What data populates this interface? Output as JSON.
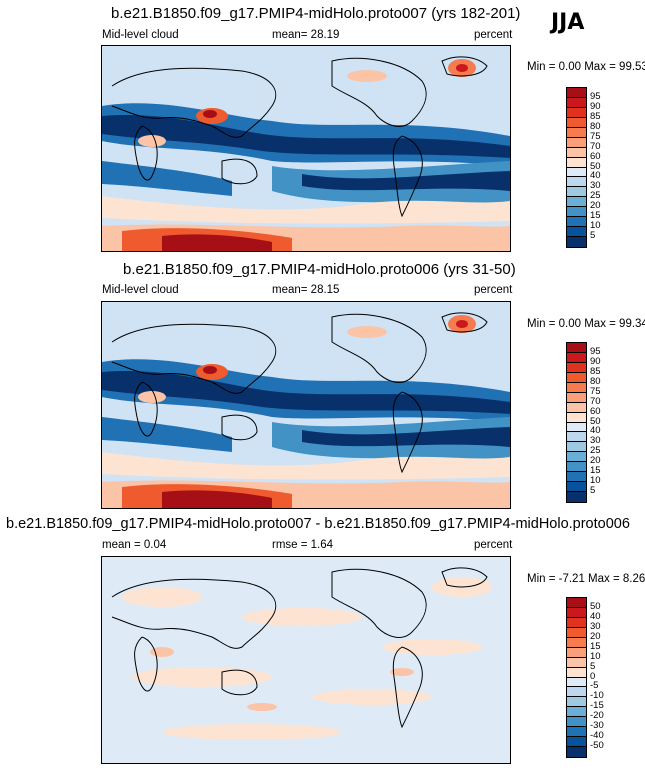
{
  "season": "JJA",
  "panels": [
    {
      "title": "b.e21.B1850.f09_g17.PMIP4-midHolo.proto007 (yrs 182-201)",
      "left": "Mid-level cloud",
      "mid": "mean=  28.19",
      "right": "percent",
      "minmax": "Min =   0.00 Max =  99.53",
      "levels": [
        "95",
        "90",
        "85",
        "80",
        "75",
        "70",
        "60",
        "50",
        "40",
        "30",
        "25",
        "20",
        "15",
        "10",
        "5"
      ],
      "colors": [
        "#a50f15",
        "#cb181d",
        "#e0321e",
        "#ef5a2f",
        "#f67c4f",
        "#f9a07a",
        "#fbc4a7",
        "#fde3d2",
        "#deebf7",
        "#bdd7ee",
        "#9ecae1",
        "#6baed6",
        "#4292c6",
        "#2171b5",
        "#08519c",
        "#08306b"
      ]
    },
    {
      "title": "b.e21.B1850.f09_g17.PMIP4-midHolo.proto006 (yrs 31-50)",
      "left": "Mid-level cloud",
      "mid": "mean=  28.15",
      "right": "percent",
      "minmax": "Min =   0.00 Max =  99.34",
      "levels": [
        "95",
        "90",
        "85",
        "80",
        "75",
        "70",
        "60",
        "50",
        "40",
        "30",
        "25",
        "20",
        "15",
        "10",
        "5"
      ],
      "colors": [
        "#a50f15",
        "#cb181d",
        "#e0321e",
        "#ef5a2f",
        "#f67c4f",
        "#f9a07a",
        "#fbc4a7",
        "#fde3d2",
        "#deebf7",
        "#bdd7ee",
        "#9ecae1",
        "#6baed6",
        "#4292c6",
        "#2171b5",
        "#08519c",
        "#08306b"
      ]
    },
    {
      "title": "b.e21.B1850.f09_g17.PMIP4-midHolo.proto007 - b.e21.B1850.f09_g17.PMIP4-midHolo.proto006",
      "left": "mean =   0.04",
      "mid": "rmse =   1.64",
      "right": "percent",
      "minmax": "Min =  -7.21 Max =   8.26",
      "levels": [
        "50",
        "40",
        "30",
        "20",
        "15",
        "10",
        "5",
        "0",
        "-5",
        "-10",
        "-15",
        "-20",
        "-30",
        "-40",
        "-50"
      ],
      "colors": [
        "#a50f15",
        "#cb181d",
        "#e0321e",
        "#ef5a2f",
        "#f67c4f",
        "#f9a07a",
        "#fbc4a7",
        "#fde3d2",
        "#deebf7",
        "#bdd7ee",
        "#9ecae1",
        "#6baed6",
        "#4292c6",
        "#2171b5",
        "#08519c",
        "#08306b"
      ]
    }
  ]
}
